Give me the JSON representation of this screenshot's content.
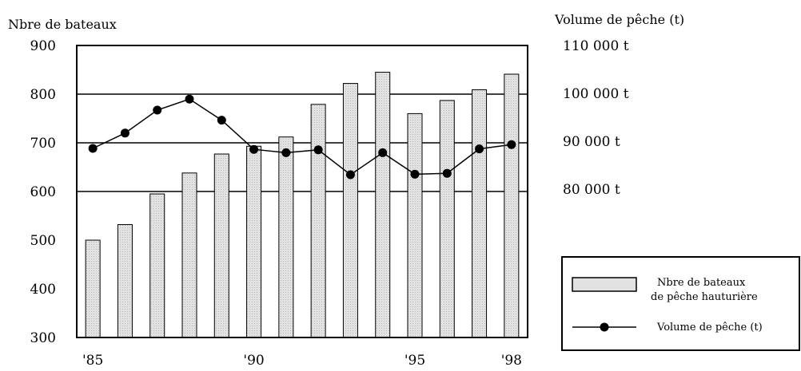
{
  "chart_data": {
    "type": "bar",
    "left_axis_title": "Nbre de bateaux",
    "right_axis_title": "Volume de pêche (t)",
    "x_tick_labels": [
      "'85",
      "'90",
      "'95",
      "'98"
    ],
    "x_tick_years": [
      1985,
      1990,
      1995,
      1998
    ],
    "categories": [
      1985,
      1986,
      1987,
      1988,
      1989,
      1990,
      1991,
      1992,
      1993,
      1994,
      1995,
      1996,
      1997,
      1998
    ],
    "y_left": {
      "ticks": [
        300,
        400,
        500,
        600,
        700,
        800,
        900
      ],
      "ylim": [
        300,
        900
      ]
    },
    "y_right": {
      "tick_values": [
        80000,
        90000,
        100000,
        110000
      ],
      "tick_labels": [
        "80 000 t",
        "90 000 t",
        "100 000 t",
        "110 000 t"
      ]
    },
    "gridlines_at": [
      600,
      700,
      800
    ],
    "series": [
      {
        "name_line1": "Nbre de bateaux",
        "name_line2": "de pêche hauturière",
        "type": "bar",
        "axis": "left",
        "values": [
          500,
          532,
          595,
          638,
          677,
          693,
          712,
          779,
          822,
          845,
          760,
          787,
          809,
          841
        ]
      },
      {
        "name": "Volume de pêche (t)",
        "type": "line",
        "axis": "right",
        "values": [
          88500,
          91700,
          96500,
          98800,
          94400,
          88300,
          87600,
          88200,
          83000,
          87600,
          83100,
          83300,
          88400,
          89300
        ]
      }
    ],
    "legend_position": "bottom-right",
    "colors": {
      "bar_fill": "#e2e2e2",
      "bar_stroke": "#000000",
      "line": "#000000",
      "marker": "#000000"
    }
  }
}
